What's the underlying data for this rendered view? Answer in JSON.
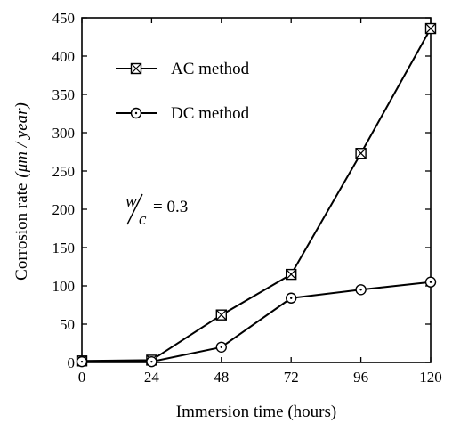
{
  "chart_data": {
    "type": "line",
    "xlabel": "Immersion time (hours)",
    "ylabel": "Corrosion rate",
    "ylabel_unit": "(μm / year)",
    "x_ticks": [
      "0",
      "24",
      "48",
      "72",
      "96",
      "120"
    ],
    "y_ticks": [
      "0",
      "50",
      "100",
      "150",
      "200",
      "250",
      "300",
      "350",
      "400",
      "450"
    ],
    "xlim": [
      0,
      120
    ],
    "ylim": [
      0,
      450
    ],
    "grid": false,
    "legend_position": "top-left",
    "series": [
      {
        "name": "AC method",
        "marker": "boxed-x",
        "x": [
          0,
          24,
          48,
          72,
          96,
          120
        ],
        "y": [
          2,
          3,
          62,
          115,
          273,
          436
        ]
      },
      {
        "name": "DC method",
        "marker": "circle",
        "x": [
          0,
          24,
          48,
          72,
          96,
          120
        ],
        "y": [
          1,
          1,
          20,
          84,
          95,
          105
        ]
      }
    ],
    "annotation": {
      "w": "w",
      "c": "c",
      "value": "= 0.3"
    }
  }
}
